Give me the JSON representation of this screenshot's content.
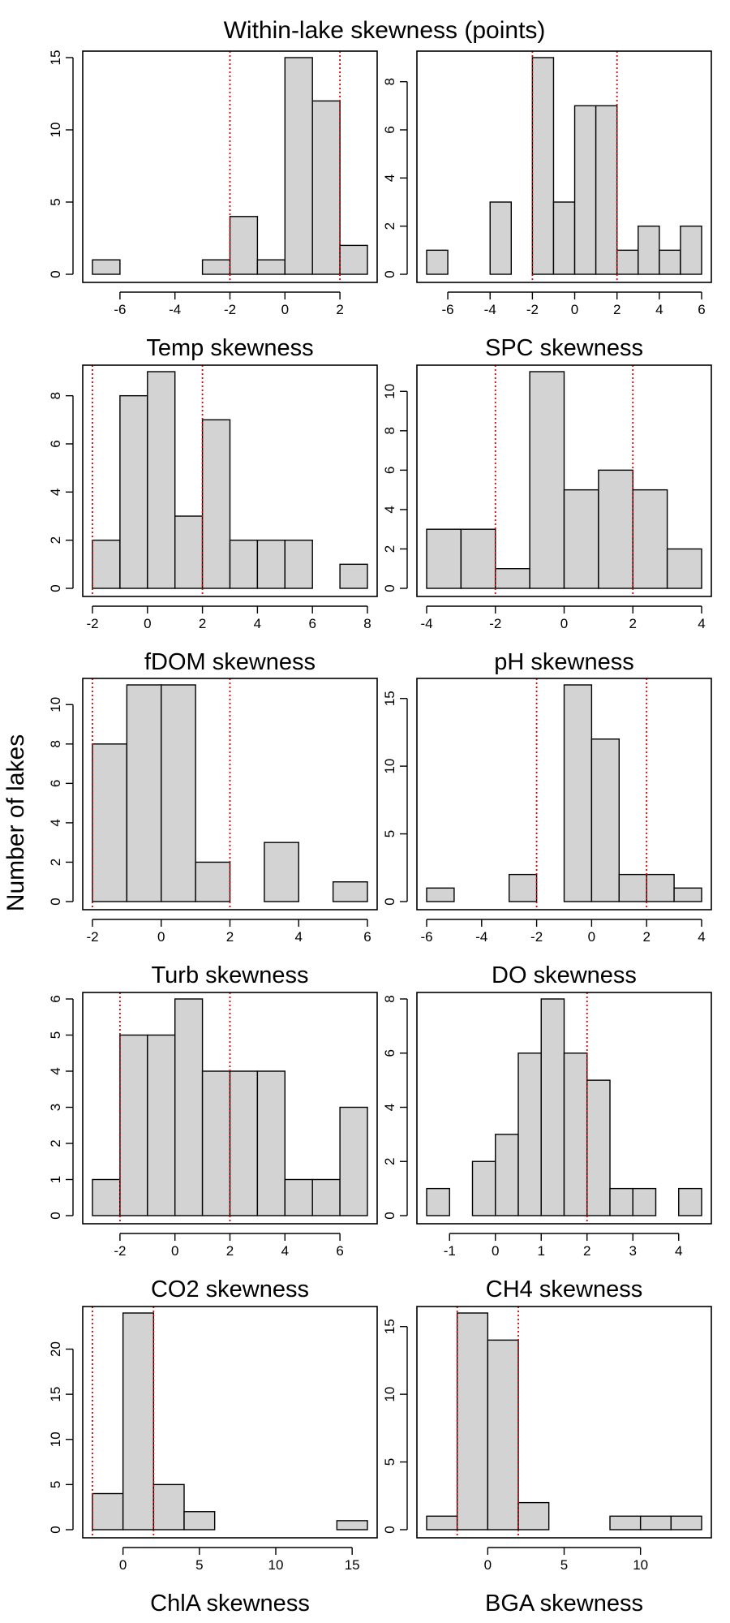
{
  "figure": {
    "title": "Within-lake skewness (points)",
    "ylabel": "Number of lakes"
  },
  "chart_data": [
    {
      "type": "bar",
      "xlabel": "Temp skewness",
      "bins": [
        [
          -7,
          -6,
          1
        ],
        [
          -6,
          -5,
          0
        ],
        [
          -5,
          -4,
          0
        ],
        [
          -4,
          -3,
          0
        ],
        [
          -3,
          -2,
          1
        ],
        [
          -2,
          -1,
          4
        ],
        [
          -1,
          0,
          1
        ],
        [
          0,
          1,
          15
        ],
        [
          1,
          2,
          12
        ],
        [
          2,
          3,
          2
        ]
      ],
      "xlim": [
        -7,
        3
      ],
      "ylim": [
        0,
        15
      ],
      "xticks": [
        -6,
        -4,
        -2,
        0,
        2
      ],
      "yticks": [
        0,
        5,
        10,
        15
      ],
      "ref_lines": [
        -2,
        2
      ],
      "grid": false
    },
    {
      "type": "bar",
      "xlabel": "SPC skewness",
      "bins": [
        [
          -7,
          -6,
          1
        ],
        [
          -6,
          -5,
          0
        ],
        [
          -5,
          -4,
          0
        ],
        [
          -4,
          -3,
          3
        ],
        [
          -3,
          -2,
          0
        ],
        [
          -2,
          -1,
          9
        ],
        [
          -1,
          0,
          3
        ],
        [
          0,
          1,
          7
        ],
        [
          1,
          2,
          7
        ],
        [
          2,
          3,
          1
        ],
        [
          3,
          4,
          2
        ],
        [
          4,
          5,
          1
        ],
        [
          5,
          6,
          2
        ]
      ],
      "xlim": [
        -7,
        6
      ],
      "ylim": [
        0,
        9
      ],
      "xticks": [
        -6,
        -4,
        -2,
        0,
        2,
        4,
        6
      ],
      "yticks": [
        0,
        2,
        4,
        6,
        8
      ],
      "ref_lines": [
        -2,
        2
      ],
      "grid": false
    },
    {
      "type": "bar",
      "xlabel": "fDOM skewness",
      "bins": [
        [
          -2,
          -1,
          2
        ],
        [
          -1,
          0,
          8
        ],
        [
          0,
          1,
          9
        ],
        [
          1,
          2,
          3
        ],
        [
          2,
          3,
          7
        ],
        [
          3,
          4,
          2
        ],
        [
          4,
          5,
          2
        ],
        [
          5,
          6,
          2
        ],
        [
          6,
          7,
          0
        ],
        [
          7,
          8,
          1
        ]
      ],
      "xlim": [
        -2,
        8
      ],
      "ylim": [
        0,
        9
      ],
      "xticks": [
        -2,
        0,
        2,
        4,
        6,
        8
      ],
      "yticks": [
        0,
        2,
        4,
        6,
        8
      ],
      "ref_lines": [
        -2,
        2
      ],
      "grid": false
    },
    {
      "type": "bar",
      "xlabel": "pH skewness",
      "bins": [
        [
          -4,
          -3,
          3
        ],
        [
          -3,
          -2,
          3
        ],
        [
          -2,
          -1,
          1
        ],
        [
          -1,
          0,
          11
        ],
        [
          0,
          1,
          5
        ],
        [
          1,
          2,
          6
        ],
        [
          2,
          3,
          5
        ],
        [
          3,
          4,
          2
        ]
      ],
      "xlim": [
        -4,
        4
      ],
      "ylim": [
        0,
        11
      ],
      "xticks": [
        -4,
        -2,
        0,
        2,
        4
      ],
      "yticks": [
        0,
        2,
        4,
        6,
        8,
        10
      ],
      "ref_lines": [
        -2,
        2
      ],
      "grid": false
    },
    {
      "type": "bar",
      "xlabel": "Turb skewness",
      "bins": [
        [
          -2,
          -1,
          8
        ],
        [
          -1,
          0,
          11
        ],
        [
          0,
          1,
          11
        ],
        [
          1,
          2,
          2
        ],
        [
          2,
          3,
          0
        ],
        [
          3,
          4,
          3
        ],
        [
          4,
          5,
          0
        ],
        [
          5,
          6,
          1
        ]
      ],
      "xlim": [
        -2,
        6
      ],
      "ylim": [
        0,
        11
      ],
      "xticks": [
        -2,
        0,
        2,
        4,
        6
      ],
      "yticks": [
        0,
        2,
        4,
        6,
        8,
        10
      ],
      "ref_lines": [
        -2,
        2
      ],
      "grid": false
    },
    {
      "type": "bar",
      "xlabel": "DO skewness",
      "bins": [
        [
          -6,
          -5,
          1
        ],
        [
          -5,
          -4,
          0
        ],
        [
          -4,
          -3,
          0
        ],
        [
          -3,
          -2,
          2
        ],
        [
          -2,
          -1,
          0
        ],
        [
          -1,
          0,
          16
        ],
        [
          0,
          1,
          12
        ],
        [
          1,
          2,
          2
        ],
        [
          2,
          3,
          2
        ],
        [
          3,
          4,
          1
        ]
      ],
      "xlim": [
        -6,
        4
      ],
      "ylim": [
        0,
        16
      ],
      "xticks": [
        -6,
        -4,
        -2,
        0,
        2,
        4
      ],
      "yticks": [
        0,
        5,
        10,
        15
      ],
      "ref_lines": [
        -2,
        2
      ],
      "grid": false
    },
    {
      "type": "bar",
      "xlabel": "CO2 skewness",
      "bins": [
        [
          -3,
          -2,
          1
        ],
        [
          -2,
          -1,
          5
        ],
        [
          -1,
          0,
          5
        ],
        [
          0,
          1,
          6
        ],
        [
          1,
          2,
          4
        ],
        [
          2,
          3,
          4
        ],
        [
          3,
          4,
          4
        ],
        [
          4,
          5,
          1
        ],
        [
          5,
          6,
          1
        ],
        [
          6,
          7,
          3
        ]
      ],
      "xlim": [
        -3,
        7
      ],
      "ylim": [
        0,
        6
      ],
      "xticks": [
        -2,
        0,
        2,
        4,
        6
      ],
      "yticks": [
        0,
        1,
        2,
        3,
        4,
        5,
        6
      ],
      "ref_lines": [
        -2,
        2
      ],
      "grid": false
    },
    {
      "type": "bar",
      "xlabel": "CH4 skewness",
      "bins": [
        [
          -1.5,
          -1,
          1
        ],
        [
          -1,
          -0.5,
          0
        ],
        [
          -0.5,
          0,
          2
        ],
        [
          0,
          0.5,
          3
        ],
        [
          0.5,
          1,
          6
        ],
        [
          1,
          1.5,
          8
        ],
        [
          1.5,
          2,
          6
        ],
        [
          2,
          2.5,
          5
        ],
        [
          2.5,
          3,
          1
        ],
        [
          3,
          3.5,
          1
        ],
        [
          3.5,
          4,
          0
        ],
        [
          4,
          4.5,
          1
        ]
      ],
      "xlim": [
        -1.5,
        4.5
      ],
      "ylim": [
        0,
        8
      ],
      "xticks": [
        -1,
        0,
        1,
        2,
        3,
        4
      ],
      "yticks": [
        0,
        2,
        4,
        6,
        8
      ],
      "ref_lines": [
        2
      ],
      "grid": false
    },
    {
      "type": "bar",
      "xlabel": "ChlA skewness",
      "bins": [
        [
          -2,
          0,
          4
        ],
        [
          0,
          2,
          24
        ],
        [
          2,
          4,
          5
        ],
        [
          4,
          6,
          2
        ],
        [
          6,
          8,
          0
        ],
        [
          8,
          10,
          0
        ],
        [
          10,
          12,
          0
        ],
        [
          12,
          14,
          0
        ],
        [
          14,
          16,
          1
        ]
      ],
      "xlim": [
        -2,
        16
      ],
      "ylim": [
        0,
        24
      ],
      "xticks": [
        0,
        5,
        10,
        15
      ],
      "yticks": [
        0,
        5,
        10,
        15,
        20
      ],
      "ref_lines": [
        -2,
        2
      ],
      "grid": false
    },
    {
      "type": "bar",
      "xlabel": "BGA skewness",
      "bins": [
        [
          -4,
          -2,
          1
        ],
        [
          -2,
          0,
          16
        ],
        [
          0,
          2,
          14
        ],
        [
          2,
          4,
          2
        ],
        [
          4,
          6,
          0
        ],
        [
          6,
          8,
          0
        ],
        [
          8,
          10,
          1
        ],
        [
          10,
          12,
          1
        ],
        [
          12,
          14,
          1
        ]
      ],
      "xlim": [
        -4,
        14
      ],
      "ylim": [
        0,
        16
      ],
      "xticks": [
        0,
        5,
        10
      ],
      "yticks": [
        0,
        5,
        10,
        15
      ],
      "ref_lines": [
        -2,
        2
      ],
      "grid": false
    }
  ]
}
